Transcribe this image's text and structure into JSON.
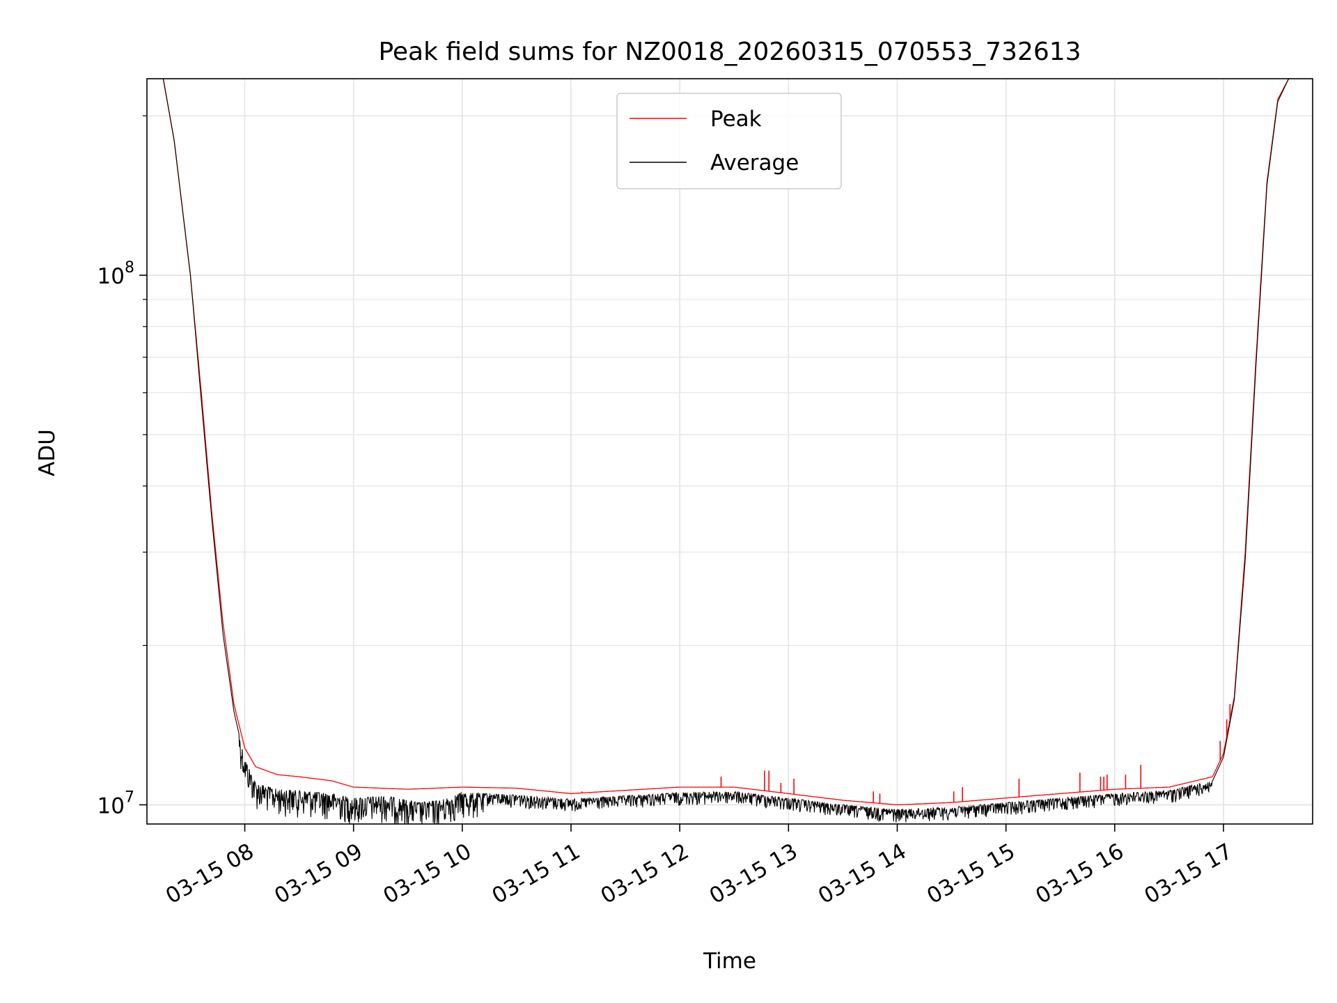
{
  "chart_data": {
    "type": "line",
    "title": "Peak field sums for NZ0018_20260315_070553_732613",
    "xlabel": "Time",
    "ylabel": "ADU",
    "yscale": "log",
    "ylim": [
      9200000,
      235000000
    ],
    "xlim_hours": [
      7.1,
      17.82
    ],
    "grid": true,
    "legend_placement": "upper-center",
    "x_ticks": [
      {
        "hour": 8,
        "label": "03-15 08"
      },
      {
        "hour": 9,
        "label": "03-15 09"
      },
      {
        "hour": 10,
        "label": "03-15 10"
      },
      {
        "hour": 11,
        "label": "03-15 11"
      },
      {
        "hour": 12,
        "label": "03-15 12"
      },
      {
        "hour": 13,
        "label": "03-15 13"
      },
      {
        "hour": 14,
        "label": "03-15 14"
      },
      {
        "hour": 15,
        "label": "03-15 15"
      },
      {
        "hour": 16,
        "label": "03-15 16"
      },
      {
        "hour": 17,
        "label": "03-15 17"
      }
    ],
    "y_major_ticks": [
      {
        "value": 10000000,
        "base": "10",
        "exp": "7"
      },
      {
        "value": 100000000,
        "base": "10",
        "exp": "8"
      }
    ],
    "series": [
      {
        "name": "Peak",
        "color": "#ff0000",
        "x_hours": [
          7.1,
          7.25,
          7.35,
          7.5,
          7.6,
          7.7,
          7.8,
          7.9,
          8.0,
          8.1,
          8.3,
          8.5,
          8.8,
          9.0,
          9.5,
          10.0,
          10.5,
          11.0,
          11.5,
          12.0,
          12.5,
          13.0,
          13.5,
          14.0,
          14.5,
          15.0,
          15.5,
          16.0,
          16.5,
          16.9,
          17.0,
          17.1,
          17.2,
          17.3,
          17.4,
          17.5,
          17.6,
          17.82
        ],
        "values": [
          235000000,
          235000000,
          180000000,
          100000000,
          60000000,
          35000000,
          22000000,
          15500000,
          12800000,
          11800000,
          11400000,
          11300000,
          11100000,
          10800000,
          10700000,
          10800000,
          10750000,
          10500000,
          10650000,
          10800000,
          10800000,
          10500000,
          10200000,
          10000000,
          10100000,
          10300000,
          10500000,
          10700000,
          10800000,
          11300000,
          12500000,
          16000000,
          30000000,
          70000000,
          150000000,
          215000000,
          235000000,
          235000000
        ],
        "spikes": [
          {
            "hour": 11.1,
            "value": 10600000
          },
          {
            "hour": 12.38,
            "value": 11300000
          },
          {
            "hour": 12.78,
            "value": 11600000
          },
          {
            "hour": 12.82,
            "value": 11600000
          },
          {
            "hour": 12.93,
            "value": 11000000
          },
          {
            "hour": 13.05,
            "value": 11200000
          },
          {
            "hour": 13.78,
            "value": 10600000
          },
          {
            "hour": 13.84,
            "value": 10500000
          },
          {
            "hour": 14.52,
            "value": 10600000
          },
          {
            "hour": 14.6,
            "value": 10800000
          },
          {
            "hour": 15.12,
            "value": 11200000
          },
          {
            "hour": 15.68,
            "value": 11500000
          },
          {
            "hour": 15.87,
            "value": 11300000
          },
          {
            "hour": 15.9,
            "value": 11300000
          },
          {
            "hour": 15.93,
            "value": 11400000
          },
          {
            "hour": 16.1,
            "value": 11400000
          },
          {
            "hour": 16.24,
            "value": 11900000
          },
          {
            "hour": 16.97,
            "value": 13200000
          },
          {
            "hour": 17.03,
            "value": 14500000
          },
          {
            "hour": 17.06,
            "value": 15500000
          }
        ]
      },
      {
        "name": "Average",
        "color": "#000000",
        "x_hours": [
          7.1,
          7.25,
          7.35,
          7.5,
          7.6,
          7.7,
          7.8,
          7.9,
          8.0,
          8.1,
          8.3,
          8.5,
          8.8,
          9.0,
          9.3,
          9.6,
          9.8,
          10.0,
          10.5,
          11.0,
          11.5,
          12.0,
          12.5,
          13.0,
          13.5,
          14.0,
          14.5,
          15.0,
          15.5,
          16.0,
          16.5,
          16.9,
          17.0,
          17.1,
          17.2,
          17.3,
          17.4,
          17.5,
          17.6,
          17.82
        ],
        "values": [
          235000000,
          235000000,
          180000000,
          100000000,
          58000000,
          34000000,
          21000000,
          15000000,
          12200000,
          11000000,
          10700000,
          10650000,
          10500000,
          10300000,
          10400000,
          10100000,
          10200000,
          10550000,
          10450000,
          10250000,
          10400000,
          10550000,
          10600000,
          10300000,
          10000000,
          9800000,
          9900000,
          10100000,
          10300000,
          10500000,
          10650000,
          11100000,
          12300000,
          15800000,
          29000000,
          68000000,
          148000000,
          213000000,
          235000000,
          235000000
        ]
      }
    ]
  }
}
